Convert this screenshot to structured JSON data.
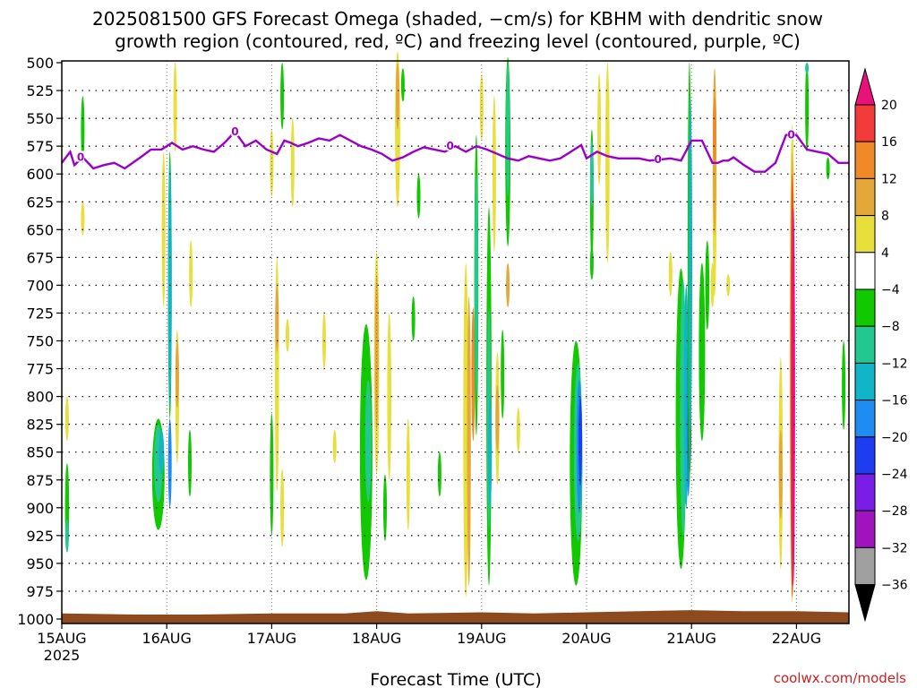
{
  "title_line1": "2025081500 GFS Forecast Omega (shaded, −cm/s) for KBHM with dendritic snow",
  "title_line2": "growth region (contoured, red, ºC) and freezing level (contoured, purple, ºC)",
  "credit": "coolwx.com/models",
  "colors": {
    "freezing_line": "#9b00c8",
    "ground": "#8c4a1e",
    "grid": "#000000"
  },
  "chart_data": {
    "type": "heatmap",
    "xlabel": "Forecast Time (UTC)",
    "ylabel": "",
    "x_range_days": [
      0,
      7.5
    ],
    "xticks": [
      {
        "day": 0,
        "label": "15AUG",
        "sub": "2025"
      },
      {
        "day": 1,
        "label": "16AUG",
        "sub": ""
      },
      {
        "day": 2,
        "label": "17AUG",
        "sub": ""
      },
      {
        "day": 3,
        "label": "18AUG",
        "sub": ""
      },
      {
        "day": 4,
        "label": "19AUG",
        "sub": ""
      },
      {
        "day": 5,
        "label": "20AUG",
        "sub": ""
      },
      {
        "day": 6,
        "label": "21AUG",
        "sub": ""
      },
      {
        "day": 7,
        "label": "22AUG",
        "sub": ""
      }
    ],
    "y_range_hpa": [
      500,
      1000
    ],
    "yticks": [
      500,
      525,
      550,
      575,
      600,
      625,
      650,
      675,
      700,
      725,
      750,
      775,
      800,
      825,
      850,
      875,
      900,
      925,
      950,
      975,
      1000
    ],
    "grid": true,
    "colorbar": {
      "labels": [
        "20",
        "16",
        "12",
        "8",
        "4",
        "−4",
        "−8",
        "−12",
        "−16",
        "−20",
        "−24",
        "−28",
        "−32",
        "−36"
      ],
      "bands": [
        {
          "lo": 16,
          "hi": 20,
          "color": "#f23c3c"
        },
        {
          "lo": 12,
          "hi": 16,
          "color": "#f08a28"
        },
        {
          "lo": 8,
          "hi": 12,
          "color": "#e4a83a"
        },
        {
          "lo": 4,
          "hi": 8,
          "color": "#e8de3c"
        },
        {
          "lo": -4,
          "hi": 4,
          "color": "#ffffff"
        },
        {
          "lo": -8,
          "hi": -4,
          "color": "#12c800"
        },
        {
          "lo": -12,
          "hi": -8,
          "color": "#22c890"
        },
        {
          "lo": -16,
          "hi": -12,
          "color": "#12b4c8"
        },
        {
          "lo": -20,
          "hi": -16,
          "color": "#1e8cf0"
        },
        {
          "lo": -24,
          "hi": -20,
          "color": "#1e3cf0"
        },
        {
          "lo": -28,
          "hi": -24,
          "color": "#7a1ee6"
        },
        {
          "lo": -32,
          "hi": -28,
          "color": "#a014be"
        },
        {
          "lo": -36,
          "hi": -32,
          "color": "#a0a0a0"
        }
      ],
      "top_arrow_color": "#e8127a",
      "bottom_arrow_color": "#000000"
    },
    "freezing_level_label": "0",
    "freezing_level": {
      "day": [
        0,
        0.08,
        0.12,
        0.2,
        0.3,
        0.4,
        0.5,
        0.6,
        0.75,
        0.85,
        0.95,
        1.05,
        1.15,
        1.25,
        1.35,
        1.45,
        1.55,
        1.65,
        1.75,
        1.85,
        1.95,
        2.05,
        2.12,
        2.18,
        2.25,
        2.35,
        2.45,
        2.55,
        2.65,
        2.75,
        2.85,
        2.95,
        3.05,
        3.15,
        3.25,
        3.35,
        3.45,
        3.55,
        3.65,
        3.75,
        3.85,
        3.95,
        4.05,
        4.15,
        4.25,
        4.35,
        4.45,
        4.55,
        4.65,
        4.75,
        4.85,
        4.95,
        5.0,
        5.1,
        5.2,
        5.3,
        5.4,
        5.5,
        5.6,
        5.7,
        5.8,
        5.9,
        6.0,
        6.1,
        6.2,
        6.25,
        6.3,
        6.35,
        6.4,
        6.5,
        6.6,
        6.7,
        6.8,
        6.9,
        7.0,
        7.1,
        7.2,
        7.3,
        7.4,
        7.5
      ],
      "hpa": [
        590,
        580,
        592,
        585,
        595,
        592,
        590,
        595,
        585,
        578,
        578,
        572,
        578,
        575,
        578,
        580,
        572,
        562,
        575,
        570,
        578,
        582,
        570,
        572,
        575,
        572,
        568,
        570,
        565,
        570,
        575,
        578,
        582,
        588,
        585,
        580,
        576,
        578,
        580,
        575,
        580,
        575,
        578,
        582,
        586,
        588,
        584,
        586,
        588,
        586,
        580,
        574,
        586,
        580,
        584,
        586,
        586,
        586,
        588,
        587,
        586,
        588,
        570,
        570,
        590,
        590,
        588,
        588,
        585,
        592,
        598,
        598,
        590,
        565,
        565,
        578,
        580,
        582,
        590,
        590
      ],
      "zero_label_days": [
        0.18,
        1.65,
        3.7,
        5.68,
        6.95
      ]
    },
    "ground_hpa": [
      {
        "day": 0,
        "p": 995
      },
      {
        "day": 0.7,
        "p": 996
      },
      {
        "day": 1.3,
        "p": 996
      },
      {
        "day": 2.0,
        "p": 995
      },
      {
        "day": 2.7,
        "p": 995
      },
      {
        "day": 3.0,
        "p": 993
      },
      {
        "day": 3.3,
        "p": 995
      },
      {
        "day": 4.0,
        "p": 994
      },
      {
        "day": 4.5,
        "p": 995
      },
      {
        "day": 5.0,
        "p": 994
      },
      {
        "day": 5.5,
        "p": 993
      },
      {
        "day": 6.0,
        "p": 992
      },
      {
        "day": 6.5,
        "p": 993
      },
      {
        "day": 7.0,
        "p": 993
      },
      {
        "day": 7.5,
        "p": 994
      }
    ],
    "omega_features": [
      {
        "day": 0.05,
        "hpa": 900,
        "dday": 0.04,
        "dhpa": 80,
        "color": "#12c800"
      },
      {
        "day": 0.05,
        "hpa": 925,
        "dday": 0.02,
        "dhpa": 30,
        "color": "#22c890"
      },
      {
        "day": 0.2,
        "hpa": 560,
        "dday": 0.02,
        "dhpa": 60,
        "color": "#12c800"
      },
      {
        "day": 0.2,
        "hpa": 640,
        "dday": 0.01,
        "dhpa": 30,
        "color": "#e8de3c"
      },
      {
        "day": 0.05,
        "hpa": 820,
        "dday": 0.02,
        "dhpa": 40,
        "color": "#e8de3c"
      },
      {
        "day": 0.92,
        "hpa": 870,
        "dday": 0.12,
        "dhpa": 100,
        "color": "#12c800"
      },
      {
        "day": 0.92,
        "hpa": 860,
        "dday": 0.08,
        "dhpa": 70,
        "color": "#22c890"
      },
      {
        "day": 0.95,
        "hpa": 850,
        "dday": 0.05,
        "dhpa": 40,
        "color": "#12b4c8"
      },
      {
        "day": 1.03,
        "hpa": 700,
        "dday": 0.035,
        "dhpa": 240,
        "color": "#12c800"
      },
      {
        "day": 1.03,
        "hpa": 700,
        "dday": 0.02,
        "dhpa": 220,
        "color": "#12b4c8"
      },
      {
        "day": 1.03,
        "hpa": 860,
        "dday": 0.015,
        "dhpa": 80,
        "color": "#1e8cf0"
      },
      {
        "day": 0.97,
        "hpa": 650,
        "dday": 0.02,
        "dhpa": 140,
        "color": "#e8de3c"
      },
      {
        "day": 1.1,
        "hpa": 800,
        "dday": 0.035,
        "dhpa": 120,
        "color": "#e8de3c"
      },
      {
        "day": 1.1,
        "hpa": 780,
        "dday": 0.02,
        "dhpa": 60,
        "color": "#e4a83a"
      },
      {
        "day": 1.22,
        "hpa": 860,
        "dday": 0.01,
        "dhpa": 60,
        "color": "#12c800"
      },
      {
        "day": 1.23,
        "hpa": 690,
        "dday": 0.01,
        "dhpa": 60,
        "color": "#e8de3c"
      },
      {
        "day": 1.08,
        "hpa": 540,
        "dday": 0.01,
        "dhpa": 80,
        "color": "#e8de3c"
      },
      {
        "day": 2.0,
        "hpa": 870,
        "dday": 0.02,
        "dhpa": 110,
        "color": "#12c800"
      },
      {
        "day": 2.05,
        "hpa": 780,
        "dday": 0.04,
        "dhpa": 210,
        "color": "#e8de3c"
      },
      {
        "day": 2.05,
        "hpa": 730,
        "dday": 0.025,
        "dhpa": 60,
        "color": "#e4a83a"
      },
      {
        "day": 2.1,
        "hpa": 900,
        "dday": 0.015,
        "dhpa": 70,
        "color": "#e8de3c"
      },
      {
        "day": 2.0,
        "hpa": 590,
        "dday": 0.015,
        "dhpa": 60,
        "color": "#e8de3c"
      },
      {
        "day": 2.15,
        "hpa": 745,
        "dday": 0.01,
        "dhpa": 30,
        "color": "#e8de3c"
      },
      {
        "day": 2.2,
        "hpa": 590,
        "dday": 0.015,
        "dhpa": 80,
        "color": "#e8de3c"
      },
      {
        "day": 2.1,
        "hpa": 530,
        "dday": 0.015,
        "dhpa": 60,
        "color": "#12c800"
      },
      {
        "day": 2.5,
        "hpa": 750,
        "dday": 0.02,
        "dhpa": 50,
        "color": "#e8de3c"
      },
      {
        "day": 2.6,
        "hpa": 845,
        "dday": 0.01,
        "dhpa": 30,
        "color": "#e8de3c"
      },
      {
        "day": 2.9,
        "hpa": 850,
        "dday": 0.12,
        "dhpa": 230,
        "color": "#12c800"
      },
      {
        "day": 2.92,
        "hpa": 840,
        "dday": 0.06,
        "dhpa": 110,
        "color": "#22c890"
      },
      {
        "day": 3.0,
        "hpa": 770,
        "dday": 0.05,
        "dhpa": 200,
        "color": "#e8de3c"
      },
      {
        "day": 3.0,
        "hpa": 760,
        "dday": 0.03,
        "dhpa": 140,
        "color": "#e4a83a"
      },
      {
        "day": 3.12,
        "hpa": 800,
        "dday": 0.04,
        "dhpa": 150,
        "color": "#e8de3c"
      },
      {
        "day": 3.08,
        "hpa": 900,
        "dday": 0.02,
        "dhpa": 60,
        "color": "#12c800"
      },
      {
        "day": 3.2,
        "hpa": 560,
        "dday": 0.05,
        "dhpa": 140,
        "color": "#e8de3c"
      },
      {
        "day": 3.2,
        "hpa": 530,
        "dday": 0.02,
        "dhpa": 60,
        "color": "#e4a83a"
      },
      {
        "day": 3.25,
        "hpa": 520,
        "dday": 0.015,
        "dhpa": 30,
        "color": "#12c800"
      },
      {
        "day": 3.3,
        "hpa": 870,
        "dday": 0.015,
        "dhpa": 100,
        "color": "#e8de3c"
      },
      {
        "day": 3.35,
        "hpa": 730,
        "dday": 0.015,
        "dhpa": 40,
        "color": "#12c800"
      },
      {
        "day": 3.4,
        "hpa": 620,
        "dday": 0.015,
        "dhpa": 40,
        "color": "#12c800"
      },
      {
        "day": 3.6,
        "hpa": 870,
        "dday": 0.02,
        "dhpa": 40,
        "color": "#12c800"
      },
      {
        "day": 3.85,
        "hpa": 830,
        "dday": 0.05,
        "dhpa": 300,
        "color": "#e8de3c"
      },
      {
        "day": 3.88,
        "hpa": 840,
        "dday": 0.035,
        "dhpa": 260,
        "color": "#e4a83a"
      },
      {
        "day": 3.92,
        "hpa": 780,
        "dday": 0.015,
        "dhpa": 120,
        "color": "#f08a28"
      },
      {
        "day": 3.95,
        "hpa": 700,
        "dday": 0.04,
        "dhpa": 270,
        "color": "#12c800"
      },
      {
        "day": 3.95,
        "hpa": 700,
        "dday": 0.02,
        "dhpa": 200,
        "color": "#22c890"
      },
      {
        "day": 4.07,
        "hpa": 800,
        "dday": 0.05,
        "dhpa": 340,
        "color": "#12c800"
      },
      {
        "day": 4.07,
        "hpa": 820,
        "dday": 0.03,
        "dhpa": 200,
        "color": "#22c890"
      },
      {
        "day": 4.08,
        "hpa": 850,
        "dday": 0.02,
        "dhpa": 100,
        "color": "#12b4c8"
      },
      {
        "day": 4.15,
        "hpa": 820,
        "dday": 0.04,
        "dhpa": 120,
        "color": "#e8de3c"
      },
      {
        "day": 4.15,
        "hpa": 820,
        "dday": 0.02,
        "dhpa": 60,
        "color": "#e4a83a"
      },
      {
        "day": 4.25,
        "hpa": 580,
        "dday": 0.05,
        "dhpa": 170,
        "color": "#12c800"
      },
      {
        "day": 4.25,
        "hpa": 560,
        "dday": 0.03,
        "dhpa": 120,
        "color": "#22c890"
      },
      {
        "day": 4.2,
        "hpa": 780,
        "dday": 0.02,
        "dhpa": 80,
        "color": "#12c800"
      },
      {
        "day": 4.25,
        "hpa": 700,
        "dday": 0.015,
        "dhpa": 40,
        "color": "#e4a83a"
      },
      {
        "day": 4.12,
        "hpa": 600,
        "dday": 0.02,
        "dhpa": 140,
        "color": "#e8de3c"
      },
      {
        "day": 4.0,
        "hpa": 540,
        "dday": 0.015,
        "dhpa": 60,
        "color": "#e8de3c"
      },
      {
        "day": 4.35,
        "hpa": 830,
        "dday": 0.015,
        "dhpa": 40,
        "color": "#e8de3c"
      },
      {
        "day": 4.9,
        "hpa": 860,
        "dday": 0.12,
        "dhpa": 220,
        "color": "#12c800"
      },
      {
        "day": 4.92,
        "hpa": 850,
        "dday": 0.08,
        "dhpa": 160,
        "color": "#22c890"
      },
      {
        "day": 4.93,
        "hpa": 845,
        "dday": 0.05,
        "dhpa": 120,
        "color": "#1e8cf0"
      },
      {
        "day": 4.94,
        "hpa": 840,
        "dday": 0.025,
        "dhpa": 80,
        "color": "#1e3cf0"
      },
      {
        "day": 5.05,
        "hpa": 620,
        "dday": 0.03,
        "dhpa": 120,
        "color": "#12c800"
      },
      {
        "day": 5.05,
        "hpa": 600,
        "dday": 0.015,
        "dhpa": 60,
        "color": "#22c890"
      },
      {
        "day": 5.2,
        "hpa": 590,
        "dday": 0.04,
        "dhpa": 180,
        "color": "#e8de3c"
      },
      {
        "day": 5.12,
        "hpa": 560,
        "dday": 0.03,
        "dhpa": 100,
        "color": "#e8de3c"
      },
      {
        "day": 5.2,
        "hpa": 540,
        "dday": 0.03,
        "dhpa": 60,
        "color": "#e8de3c"
      },
      {
        "day": 5.05,
        "hpa": 680,
        "dday": 0.015,
        "dhpa": 30,
        "color": "#12c800"
      },
      {
        "day": 5.9,
        "hpa": 820,
        "dday": 0.1,
        "dhpa": 270,
        "color": "#12c800"
      },
      {
        "day": 5.92,
        "hpa": 810,
        "dday": 0.06,
        "dhpa": 230,
        "color": "#22c890"
      },
      {
        "day": 5.95,
        "hpa": 800,
        "dday": 0.045,
        "dhpa": 200,
        "color": "#12b4c8"
      },
      {
        "day": 5.97,
        "hpa": 820,
        "dday": 0.035,
        "dhpa": 140,
        "color": "#1e8cf0"
      },
      {
        "day": 5.98,
        "hpa": 830,
        "dday": 0.02,
        "dhpa": 80,
        "color": "#1e3cf0"
      },
      {
        "day": 5.98,
        "hpa": 690,
        "dday": 0.035,
        "dhpa": 380,
        "color": "#12c800"
      },
      {
        "day": 5.99,
        "hpa": 680,
        "dday": 0.02,
        "dhpa": 300,
        "color": "#12b4c8"
      },
      {
        "day": 6.1,
        "hpa": 760,
        "dday": 0.06,
        "dhpa": 160,
        "color": "#12c800"
      },
      {
        "day": 6.15,
        "hpa": 700,
        "dday": 0.04,
        "dhpa": 80,
        "color": "#12c800"
      },
      {
        "day": 6.22,
        "hpa": 610,
        "dday": 0.04,
        "dhpa": 200,
        "color": "#e8de3c"
      },
      {
        "day": 6.22,
        "hpa": 580,
        "dday": 0.025,
        "dhpa": 150,
        "color": "#e4a83a"
      },
      {
        "day": 6.22,
        "hpa": 560,
        "dday": 0.015,
        "dhpa": 60,
        "color": "#f08a28"
      },
      {
        "day": 6.2,
        "hpa": 700,
        "dday": 0.015,
        "dhpa": 40,
        "color": "#e8de3c"
      },
      {
        "day": 5.8,
        "hpa": 690,
        "dday": 0.015,
        "dhpa": 40,
        "color": "#e8de3c"
      },
      {
        "day": 6.35,
        "hpa": 700,
        "dday": 0.015,
        "dhpa": 20,
        "color": "#e8de3c"
      },
      {
        "day": 6.85,
        "hpa": 860,
        "dday": 0.04,
        "dhpa": 190,
        "color": "#e8de3c"
      },
      {
        "day": 6.85,
        "hpa": 870,
        "dday": 0.02,
        "dhpa": 80,
        "color": "#e4a83a"
      },
      {
        "day": 6.96,
        "hpa": 770,
        "dday": 0.05,
        "dhpa": 430,
        "color": "#e8de3c"
      },
      {
        "day": 6.96,
        "hpa": 780,
        "dday": 0.035,
        "dhpa": 400,
        "color": "#e4a83a"
      },
      {
        "day": 6.96,
        "hpa": 790,
        "dday": 0.025,
        "dhpa": 380,
        "color": "#f23c3c"
      },
      {
        "day": 6.97,
        "hpa": 800,
        "dday": 0.018,
        "dhpa": 340,
        "color": "#e8127a"
      },
      {
        "day": 7.1,
        "hpa": 540,
        "dday": 0.015,
        "dhpa": 80,
        "color": "#12c800"
      },
      {
        "day": 7.45,
        "hpa": 790,
        "dday": 0.015,
        "dhpa": 80,
        "color": "#12c800"
      },
      {
        "day": 7.3,
        "hpa": 595,
        "dday": 0.01,
        "dhpa": 20,
        "color": "#12c800"
      },
      {
        "day": 7.1,
        "hpa": 505,
        "dday": 0.01,
        "dhpa": 10,
        "color": "#22c890"
      }
    ]
  }
}
